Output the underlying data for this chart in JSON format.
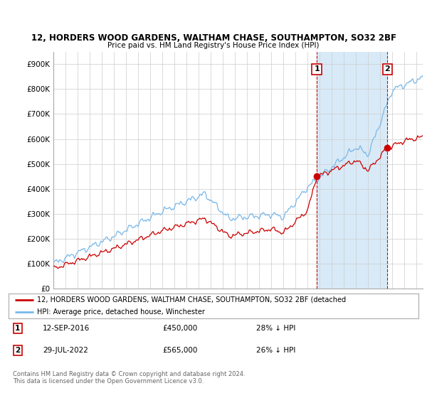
{
  "title1": "12, HORDERS WOOD GARDENS, WALTHAM CHASE, SOUTHAMPTON, SO32 2BF",
  "title2": "Price paid vs. HM Land Registry's House Price Index (HPI)",
  "ylabel_ticks": [
    "£0",
    "£100K",
    "£200K",
    "£300K",
    "£400K",
    "£500K",
    "£600K",
    "£700K",
    "£800K",
    "£900K"
  ],
  "ytick_vals": [
    0,
    100000,
    200000,
    300000,
    400000,
    500000,
    600000,
    700000,
    800000,
    900000
  ],
  "ylim": [
    0,
    950000
  ],
  "hpi_color": "#7ab8e8",
  "price_color": "#cc0000",
  "shade_color": "#d8eaf8",
  "legend_line1": "12, HORDERS WOOD GARDENS, WALTHAM CHASE, SOUTHAMPTON, SO32 2BF (detached",
  "legend_line2": "HPI: Average price, detached house, Winchester",
  "table_row1": [
    "1",
    "12-SEP-2016",
    "£450,000",
    "28% ↓ HPI"
  ],
  "table_row2": [
    "2",
    "29-JUL-2022",
    "£565,000",
    "26% ↓ HPI"
  ],
  "footnote1": "Contains HM Land Registry data © Crown copyright and database right 2024.",
  "footnote2": "This data is licensed under the Open Government Licence v3.0.",
  "bg_color": "#ffffff",
  "grid_color": "#cccccc",
  "x_start_year": 1995,
  "x_end_year": 2025,
  "marker1_x": 2016.75,
  "marker2_x": 2022.58
}
